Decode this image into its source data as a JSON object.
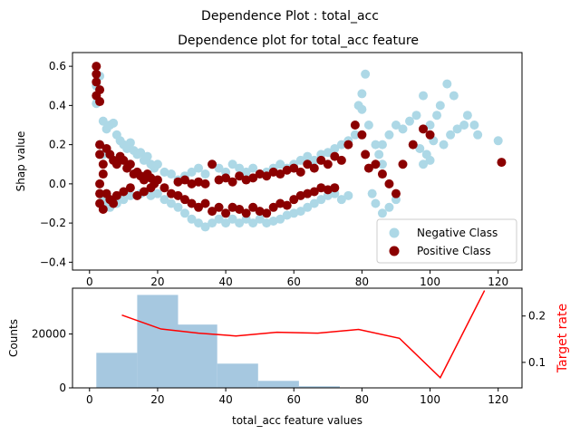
{
  "figure": {
    "suptitle": "Dependence Plot : total_acc"
  },
  "chart_data": [
    {
      "type": "scatter",
      "title": "Dependence plot for total_acc feature",
      "xlabel": "",
      "ylabel": "Shap value",
      "xlim": [
        -5,
        127
      ],
      "ylim": [
        -0.44,
        0.67
      ],
      "xticks": [
        0,
        20,
        40,
        60,
        80,
        100,
        120
      ],
      "yticks": [
        -0.4,
        -0.2,
        0.0,
        0.2,
        0.4,
        0.6
      ],
      "ytick_labels": [
        "−0.4",
        "−0.2",
        "0.0",
        "0.2",
        "0.4",
        "0.6"
      ],
      "legend_position": "lower-right",
      "series": [
        {
          "name": "Negative Class",
          "color": "#add8e6",
          "points": [
            [
              2,
              0.41
            ],
            [
              2,
              0.45
            ],
            [
              2,
              0.5
            ],
            [
              3,
              0.55
            ],
            [
              3,
              0.2
            ],
            [
              4,
              0.15
            ],
            [
              4,
              0.32
            ],
            [
              5,
              0.28
            ],
            [
              6,
              0.3
            ],
            [
              7,
              0.31
            ],
            [
              8,
              0.25
            ],
            [
              9,
              0.22
            ],
            [
              10,
              0.2
            ],
            [
              11,
              0.18
            ],
            [
              12,
              0.21
            ],
            [
              13,
              0.17
            ],
            [
              14,
              0.15
            ],
            [
              15,
              0.16
            ],
            [
              16,
              0.12
            ],
            [
              17,
              0.14
            ],
            [
              18,
              0.1
            ],
            [
              19,
              0.08
            ],
            [
              20,
              0.1
            ],
            [
              22,
              0.06
            ],
            [
              24,
              0.05
            ],
            [
              4,
              -0.08
            ],
            [
              5,
              -0.1
            ],
            [
              6,
              -0.12
            ],
            [
              8,
              -0.1
            ],
            [
              10,
              -0.08
            ],
            [
              12,
              -0.06
            ],
            [
              15,
              -0.05
            ],
            [
              18,
              -0.06
            ],
            [
              20,
              -0.05
            ],
            [
              22,
              -0.08
            ],
            [
              24,
              -0.1
            ],
            [
              26,
              -0.12
            ],
            [
              28,
              -0.15
            ],
            [
              30,
              -0.18
            ],
            [
              32,
              -0.2
            ],
            [
              34,
              -0.22
            ],
            [
              36,
              -0.2
            ],
            [
              38,
              -0.18
            ],
            [
              40,
              -0.2
            ],
            [
              42,
              -0.18
            ],
            [
              44,
              -0.2
            ],
            [
              46,
              -0.18
            ],
            [
              48,
              -0.2
            ],
            [
              50,
              -0.18
            ],
            [
              52,
              -0.2
            ],
            [
              54,
              -0.19
            ],
            [
              56,
              -0.18
            ],
            [
              58,
              -0.16
            ],
            [
              60,
              -0.15
            ],
            [
              62,
              -0.14
            ],
            [
              64,
              -0.12
            ],
            [
              66,
              -0.1
            ],
            [
              68,
              -0.08
            ],
            [
              70,
              -0.06
            ],
            [
              72,
              -0.05
            ],
            [
              74,
              -0.08
            ],
            [
              76,
              -0.06
            ],
            [
              26,
              0.02
            ],
            [
              28,
              0.04
            ],
            [
              30,
              0.06
            ],
            [
              32,
              0.08
            ],
            [
              34,
              0.05
            ],
            [
              36,
              0.1
            ],
            [
              38,
              0.08
            ],
            [
              40,
              0.06
            ],
            [
              42,
              0.1
            ],
            [
              44,
              0.08
            ],
            [
              46,
              0.06
            ],
            [
              48,
              0.08
            ],
            [
              50,
              0.05
            ],
            [
              52,
              0.06
            ],
            [
              54,
              0.08
            ],
            [
              56,
              0.1
            ],
            [
              58,
              0.08
            ],
            [
              60,
              0.1
            ],
            [
              62,
              0.12
            ],
            [
              64,
              0.14
            ],
            [
              66,
              0.12
            ],
            [
              68,
              0.15
            ],
            [
              70,
              0.16
            ],
            [
              72,
              0.18
            ],
            [
              74,
              0.2
            ],
            [
              76,
              0.22
            ],
            [
              78,
              0.25
            ],
            [
              79,
              0.4
            ],
            [
              80,
              0.38
            ],
            [
              81,
              0.56
            ],
            [
              80,
              0.46
            ],
            [
              82,
              0.3
            ],
            [
              84,
              0.2
            ],
            [
              85,
              0.15
            ],
            [
              86,
              0.1
            ],
            [
              83,
              -0.05
            ],
            [
              84,
              -0.1
            ],
            [
              86,
              -0.15
            ],
            [
              88,
              -0.12
            ],
            [
              90,
              -0.08
            ],
            [
              86,
              0.2
            ],
            [
              88,
              0.25
            ],
            [
              90,
              0.3
            ],
            [
              92,
              0.28
            ],
            [
              94,
              0.32
            ],
            [
              96,
              0.35
            ],
            [
              98,
              0.45
            ],
            [
              100,
              0.3
            ],
            [
              102,
              0.35
            ],
            [
              103,
              0.4
            ],
            [
              105,
              0.51
            ],
            [
              107,
              0.45
            ],
            [
              108,
              0.28
            ],
            [
              110,
              0.3
            ],
            [
              111,
              0.35
            ],
            [
              113,
              0.3
            ],
            [
              114,
              0.25
            ],
            [
              120,
              0.22
            ],
            [
              95,
              0.2
            ],
            [
              97,
              0.18
            ],
            [
              99,
              0.15
            ],
            [
              101,
              0.22
            ],
            [
              104,
              0.2
            ],
            [
              106,
              0.25
            ],
            [
              98,
              0.1
            ],
            [
              100,
              0.12
            ]
          ]
        },
        {
          "name": "Positive Class",
          "color": "#8b0000",
          "points": [
            [
              2,
              0.6
            ],
            [
              2,
              0.56
            ],
            [
              2,
              0.52
            ],
            [
              3,
              0.48
            ],
            [
              2,
              0.45
            ],
            [
              3,
              0.42
            ],
            [
              3,
              0.2
            ],
            [
              3,
              0.15
            ],
            [
              4,
              0.1
            ],
            [
              4,
              0.05
            ],
            [
              3,
              0.0
            ],
            [
              3,
              -0.05
            ],
            [
              3,
              -0.1
            ],
            [
              4,
              -0.13
            ],
            [
              5,
              0.18
            ],
            [
              6,
              0.15
            ],
            [
              7,
              0.12
            ],
            [
              8,
              0.1
            ],
            [
              9,
              0.14
            ],
            [
              10,
              0.12
            ],
            [
              11,
              0.08
            ],
            [
              12,
              0.1
            ],
            [
              13,
              0.05
            ],
            [
              14,
              0.06
            ],
            [
              15,
              0.04
            ],
            [
              16,
              0.02
            ],
            [
              17,
              0.05
            ],
            [
              18,
              0.03
            ],
            [
              19,
              0.0
            ],
            [
              20,
              0.02
            ],
            [
              5,
              -0.05
            ],
            [
              6,
              -0.08
            ],
            [
              7,
              -0.1
            ],
            [
              8,
              -0.06
            ],
            [
              10,
              -0.04
            ],
            [
              12,
              -0.02
            ],
            [
              14,
              -0.06
            ],
            [
              16,
              -0.04
            ],
            [
              18,
              -0.02
            ],
            [
              22,
              -0.02
            ],
            [
              24,
              -0.05
            ],
            [
              26,
              -0.06
            ],
            [
              28,
              -0.08
            ],
            [
              30,
              -0.1
            ],
            [
              32,
              -0.12
            ],
            [
              34,
              -0.1
            ],
            [
              36,
              -0.14
            ],
            [
              38,
              -0.12
            ],
            [
              40,
              -0.15
            ],
            [
              42,
              -0.12
            ],
            [
              44,
              -0.13
            ],
            [
              46,
              -0.15
            ],
            [
              48,
              -0.12
            ],
            [
              50,
              -0.14
            ],
            [
              52,
              -0.15
            ],
            [
              54,
              -0.12
            ],
            [
              56,
              -0.1
            ],
            [
              58,
              -0.11
            ],
            [
              60,
              -0.08
            ],
            [
              62,
              -0.06
            ],
            [
              64,
              -0.05
            ],
            [
              66,
              -0.04
            ],
            [
              68,
              -0.02
            ],
            [
              70,
              -0.03
            ],
            [
              72,
              -0.02
            ],
            [
              26,
              0.01
            ],
            [
              28,
              0.02
            ],
            [
              30,
              0.0
            ],
            [
              32,
              0.01
            ],
            [
              34,
              0.0
            ],
            [
              36,
              0.1
            ],
            [
              38,
              0.02
            ],
            [
              40,
              0.03
            ],
            [
              42,
              0.01
            ],
            [
              44,
              0.04
            ],
            [
              46,
              0.02
            ],
            [
              48,
              0.03
            ],
            [
              50,
              0.05
            ],
            [
              52,
              0.04
            ],
            [
              54,
              0.06
            ],
            [
              56,
              0.05
            ],
            [
              58,
              0.07
            ],
            [
              60,
              0.08
            ],
            [
              62,
              0.06
            ],
            [
              64,
              0.1
            ],
            [
              66,
              0.08
            ],
            [
              68,
              0.12
            ],
            [
              70,
              0.1
            ],
            [
              72,
              0.14
            ],
            [
              74,
              0.12
            ],
            [
              76,
              0.2
            ],
            [
              78,
              0.3
            ],
            [
              80,
              0.25
            ],
            [
              81,
              0.15
            ],
            [
              82,
              0.08
            ],
            [
              84,
              0.1
            ],
            [
              86,
              0.05
            ],
            [
              88,
              0.0
            ],
            [
              90,
              -0.05
            ],
            [
              92,
              0.1
            ],
            [
              95,
              0.2
            ],
            [
              98,
              0.28
            ],
            [
              100,
              0.25
            ],
            [
              121,
              0.11
            ]
          ]
        }
      ]
    },
    {
      "type": "bar",
      "xlabel": "total_acc feature values",
      "ylabel": "Counts",
      "right_ylabel": "Target rate",
      "right_ylabel_color": "#ff0000",
      "xlim": [
        -5,
        127
      ],
      "ylim": [
        0,
        37000
      ],
      "right_ylim": [
        0.045,
        0.26
      ],
      "xticks": [
        0,
        20,
        40,
        60,
        80,
        100,
        120
      ],
      "yticks": [
        0,
        20000
      ],
      "right_yticks": [
        0.1,
        0.2
      ],
      "bar_color": "#a6c8e0",
      "bins": [
        {
          "x0": 2,
          "x1": 14,
          "count": 13000
        },
        {
          "x0": 14,
          "x1": 26,
          "count": 34500
        },
        {
          "x0": 26,
          "x1": 37.5,
          "count": 23500
        },
        {
          "x0": 37.5,
          "x1": 49.5,
          "count": 9000
        },
        {
          "x0": 49.5,
          "x1": 61.5,
          "count": 2600
        },
        {
          "x0": 61.5,
          "x1": 73.5,
          "count": 600
        },
        {
          "x0": 73.5,
          "x1": 85.5,
          "count": 120
        },
        {
          "x0": 85.5,
          "x1": 97.5,
          "count": 40
        },
        {
          "x0": 97.5,
          "x1": 109.5,
          "count": 10
        },
        {
          "x0": 109.5,
          "x1": 121.5,
          "count": 4
        }
      ],
      "target_rate": {
        "name": "Target rate",
        "color": "#ff0000",
        "x": [
          9.5,
          21,
          32,
          43,
          55,
          67,
          79,
          91,
          103,
          116
        ],
        "y": [
          0.202,
          0.172,
          0.163,
          0.157,
          0.165,
          0.163,
          0.171,
          0.152,
          0.067,
          0.255
        ]
      }
    }
  ]
}
